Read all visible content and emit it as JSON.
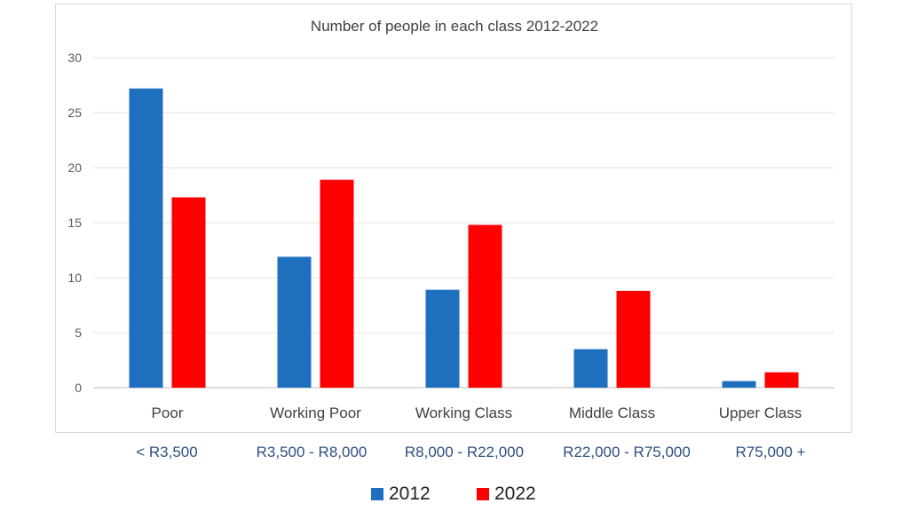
{
  "chart_data": {
    "type": "bar",
    "title": "Number of people in each class 2012-2022",
    "categories": [
      "Poor",
      "Working Poor",
      "Working Class",
      "Middle Class",
      "Upper Class"
    ],
    "income_ranges": [
      "< R3,500",
      "R3,500 - R8,000",
      "R8,000 - R22,000",
      "R22,000 - R75,000",
      "R75,000 +"
    ],
    "series": [
      {
        "name": "2012",
        "color": "#1f6fbf",
        "values": [
          27.2,
          11.9,
          8.9,
          3.5,
          0.6
        ]
      },
      {
        "name": "2022",
        "color": "#ff0000",
        "values": [
          17.3,
          18.9,
          14.8,
          8.8,
          1.4
        ]
      }
    ],
    "ylim": [
      0,
      30
    ],
    "yticks": [
      0,
      5,
      10,
      15,
      20,
      25,
      30
    ],
    "grid": true,
    "legend_position": "bottom"
  }
}
